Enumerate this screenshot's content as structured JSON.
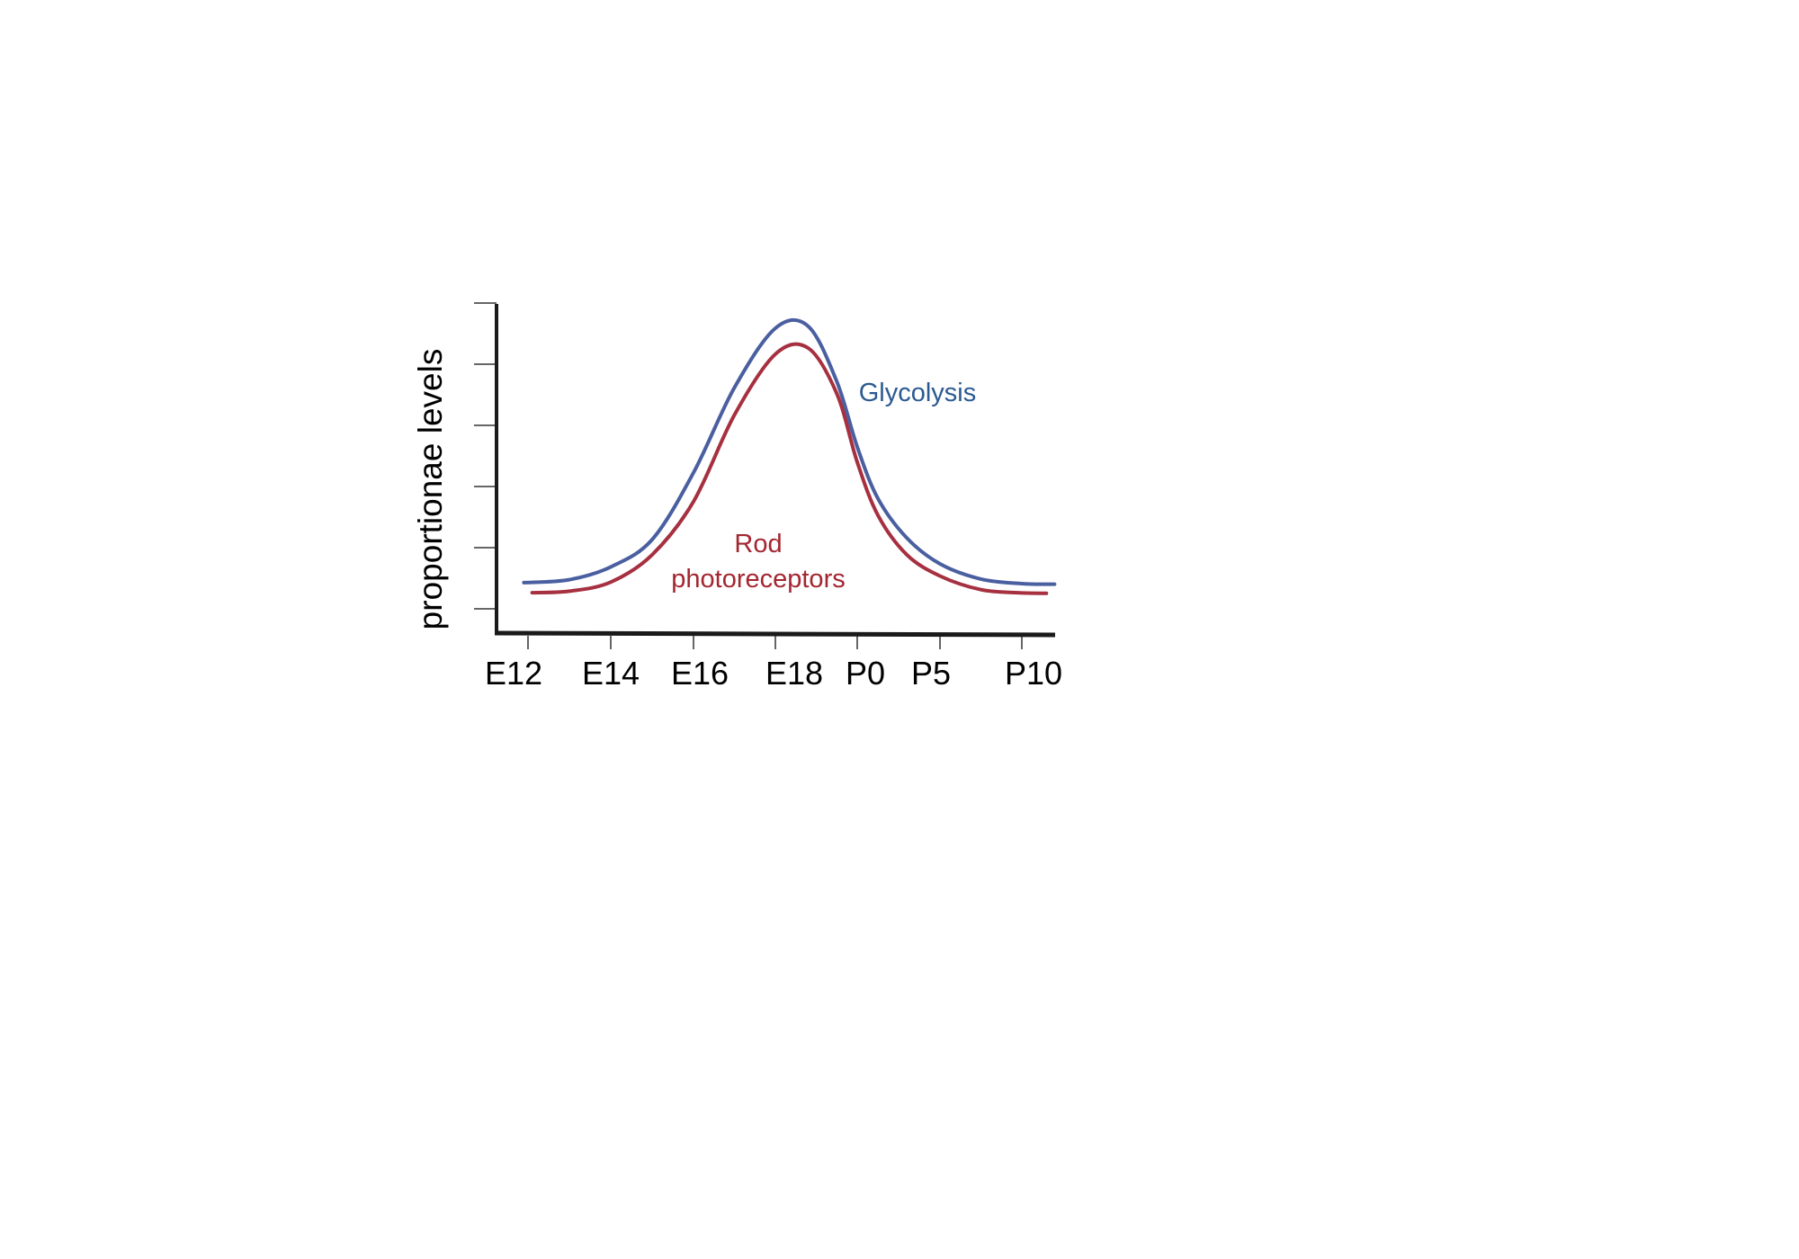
{
  "chart_data": {
    "type": "line",
    "title": "",
    "xlabel": "",
    "ylabel": "proportionae levels",
    "x_tick_labels": [
      "E12",
      "E14",
      "E16",
      "E18",
      "P0",
      "P5",
      "P10"
    ],
    "y_tick_count": 6,
    "grid": false,
    "legend": "inline labels",
    "series": [
      {
        "name": "Glycolysis",
        "label_lines": [
          "Glycolysis"
        ],
        "color": "#4a5fa0",
        "label_color": "#2b5a92",
        "x": [
          -0.05,
          0.5,
          1.0,
          1.5,
          2.0,
          2.5,
          3.0,
          3.4,
          3.75,
          4.0,
          4.25,
          4.6,
          5.0,
          5.5,
          6.0,
          6.4
        ],
        "values": [
          0.83,
          0.93,
          1.35,
          2.25,
          4.45,
          7.25,
          9.2,
          9.27,
          7.45,
          5.3,
          3.6,
          2.3,
          1.45,
          0.95,
          0.8,
          0.78
        ]
      },
      {
        "name": "Rod photoreceptors",
        "label_lines": [
          "Rod",
          "photoreceptors"
        ],
        "color": "#a63040",
        "label_color": "#a32630",
        "x": [
          0.05,
          0.5,
          1.0,
          1.5,
          2.0,
          2.5,
          3.0,
          3.4,
          3.75,
          4.0,
          4.25,
          4.6,
          5.0,
          5.5,
          5.95,
          6.3
        ],
        "values": [
          0.5,
          0.55,
          0.85,
          1.75,
          3.5,
          6.35,
          8.35,
          8.55,
          7.05,
          4.8,
          3.05,
          1.75,
          1.05,
          0.6,
          0.5,
          0.48
        ]
      }
    ]
  }
}
